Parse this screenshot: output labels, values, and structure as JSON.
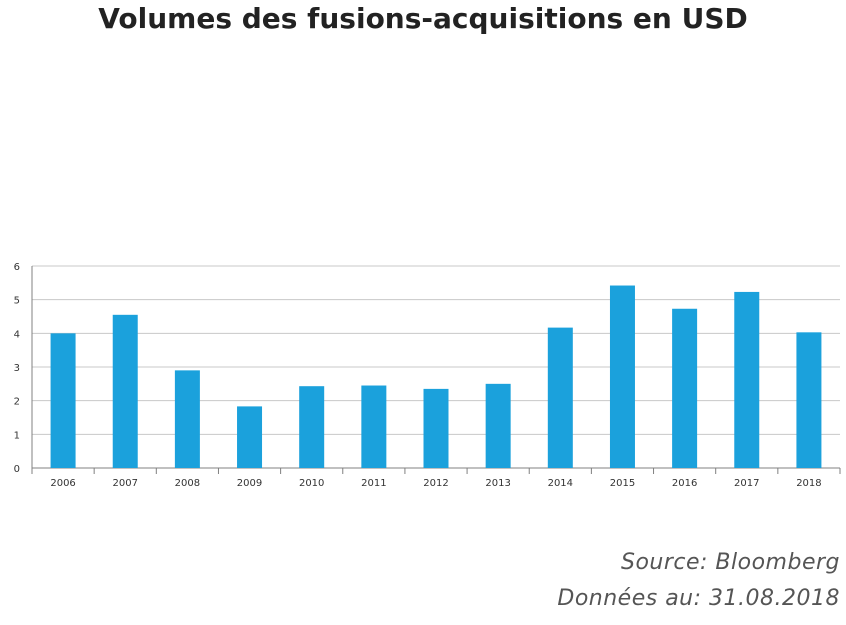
{
  "title": "Volumes des fusions-acquisitions en USD",
  "footer": {
    "source": "Source: Bloomberg",
    "date": "Données au: 31.08.2018"
  },
  "colors": {
    "bar": "#1ba1dc",
    "grid": "#c8c8c8",
    "axis": "#808080"
  },
  "chart_data": {
    "type": "bar",
    "title": "Volumes des fusions-acquisitions en USD",
    "xlabel": "",
    "ylabel": "",
    "categories": [
      "2006",
      "2007",
      "2008",
      "2009",
      "2010",
      "2011",
      "2012",
      "2013",
      "2014",
      "2015",
      "2016",
      "2017",
      "2018"
    ],
    "values": [
      4.0,
      4.55,
      2.9,
      1.83,
      2.43,
      2.45,
      2.35,
      2.5,
      4.17,
      5.42,
      4.73,
      5.23,
      4.03
    ],
    "ylim": [
      0,
      6
    ],
    "yticks": [
      0,
      1,
      2,
      3,
      4,
      5,
      6
    ],
    "grid": true,
    "legend": "none"
  }
}
